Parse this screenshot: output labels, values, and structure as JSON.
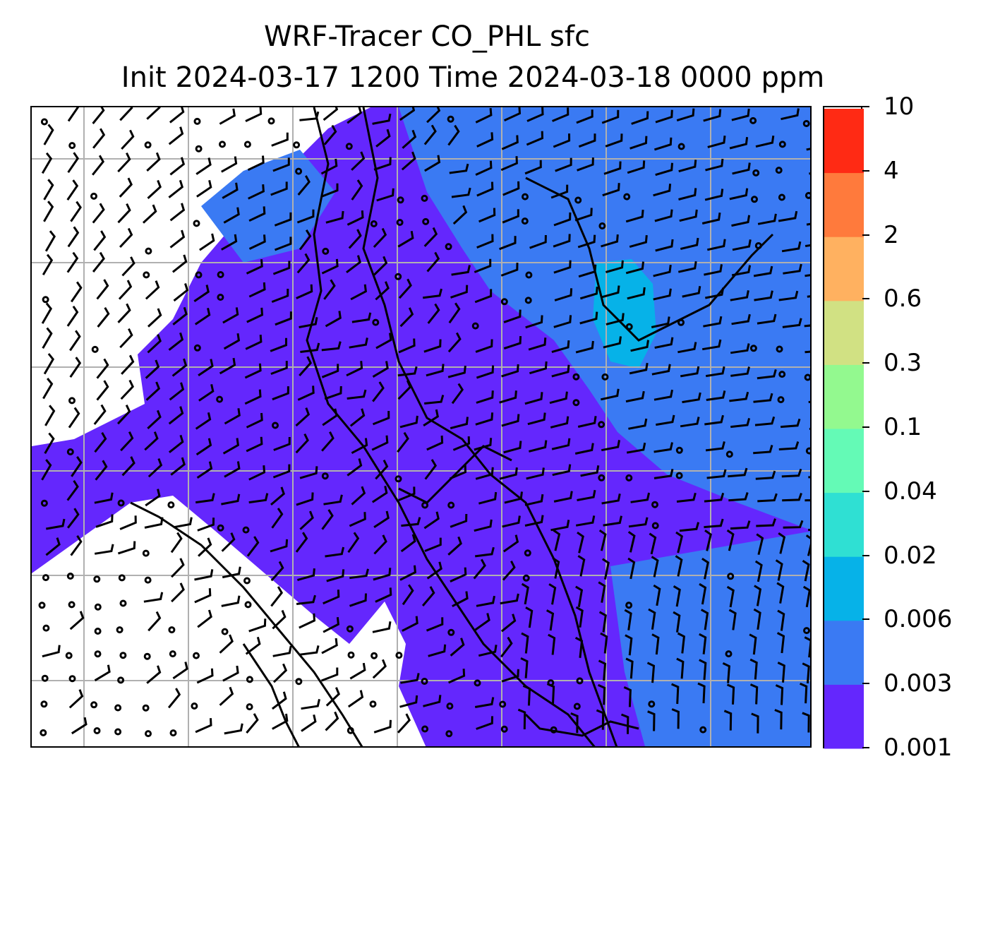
{
  "title": {
    "line1": "WRF-Tracer CO_PHL sfc",
    "line2": "Init 2024-03-17 1200 Time 2024-03-18 0000 ppm"
  },
  "colorbar": {
    "levels": [
      "0.001",
      "0.003",
      "0.006",
      "0.02",
      "0.04",
      "0.1",
      "0.3",
      "0.6",
      "2",
      "4",
      "10"
    ],
    "colors": [
      "#6427fd",
      "#3a7af3",
      "#06b2e8",
      "#2fe0d3",
      "#64fab6",
      "#93f98f",
      "#d1e183",
      "#ffb160",
      "#ff7a3c",
      "#ff2a14"
    ]
  },
  "map": {
    "background": "#ffffff",
    "gridlines": "on",
    "grid_color": "#b0b0b0",
    "overlay": "wind-barbs",
    "coastline_color": "#000000"
  }
}
